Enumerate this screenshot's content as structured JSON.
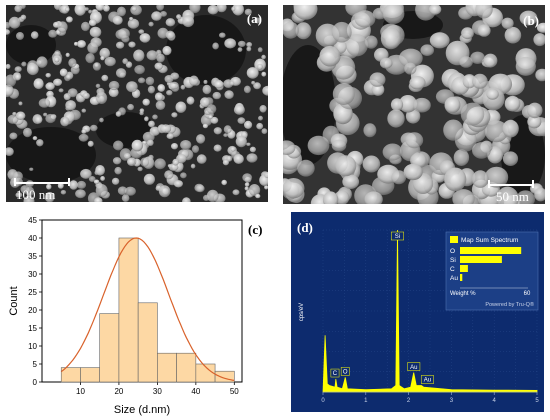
{
  "panels": {
    "a": {
      "label": "(a)",
      "scale_bar": "100 nm"
    },
    "b": {
      "label": "(b)",
      "scale_bar": "50 nm"
    },
    "c": {
      "label": "(c)"
    },
    "d": {
      "label": "(d)"
    }
  },
  "chart_data": [
    {
      "type": "bar",
      "panel": "c",
      "xlabel": "Size (d.nm)",
      "ylabel": "Count",
      "x_ticks": [
        10,
        20,
        30,
        40,
        50
      ],
      "y_ticks": [
        0,
        5,
        10,
        15,
        20,
        25,
        30,
        35,
        40,
        45
      ],
      "xlim": [
        0,
        52
      ],
      "ylim": [
        0,
        45
      ],
      "bins": [
        {
          "start": 5,
          "end": 10,
          "count": 4
        },
        {
          "start": 10,
          "end": 15,
          "count": 4
        },
        {
          "start": 15,
          "end": 20,
          "count": 19
        },
        {
          "start": 20,
          "end": 25,
          "count": 40
        },
        {
          "start": 25,
          "end": 30,
          "count": 22
        },
        {
          "start": 30,
          "end": 35,
          "count": 8
        },
        {
          "start": 35,
          "end": 40,
          "count": 8
        },
        {
          "start": 40,
          "end": 45,
          "count": 5
        },
        {
          "start": 45,
          "end": 50,
          "count": 3
        }
      ],
      "fit": {
        "type": "normal",
        "mean": 24.5,
        "sd": 8.5,
        "peak": 40
      },
      "colors": {
        "bar": "#fdd8a4",
        "bar_edge": "#666666",
        "fit": "#d9622b"
      }
    },
    {
      "type": "line",
      "panel": "d",
      "ylabel": "cps/eV",
      "x_ticks": [
        0,
        1,
        2,
        3,
        4,
        5
      ],
      "xlim": [
        0,
        5
      ],
      "ylim": [
        0,
        100
      ],
      "spectrum": [
        [
          0,
          0
        ],
        [
          0.05,
          35
        ],
        [
          0.1,
          5
        ],
        [
          0.15,
          4
        ],
        [
          0.28,
          3
        ],
        [
          0.3,
          8
        ],
        [
          0.33,
          3
        ],
        [
          0.45,
          2
        ],
        [
          0.52,
          9
        ],
        [
          0.57,
          2
        ],
        [
          1.0,
          1.5
        ],
        [
          1.6,
          2
        ],
        [
          1.7,
          4
        ],
        [
          1.74,
          100
        ],
        [
          1.78,
          4
        ],
        [
          1.9,
          2
        ],
        [
          2.05,
          3
        ],
        [
          2.12,
          12
        ],
        [
          2.18,
          4
        ],
        [
          2.3,
          4
        ],
        [
          2.35,
          3
        ],
        [
          3.0,
          1.5
        ],
        [
          4.0,
          1.2
        ],
        [
          5.0,
          1.0
        ]
      ],
      "peak_labels": [
        {
          "text": "C",
          "x": 0.28
        },
        {
          "text": "O",
          "x": 0.52
        },
        {
          "text": "Si",
          "x": 1.74
        },
        {
          "text": "Au",
          "x": 2.12
        },
        {
          "text": "Au",
          "x": 2.3
        }
      ],
      "legend": {
        "title": "Map Sum Spectrum",
        "axis_label": "Weight %",
        "axis_max": "60",
        "footer": "Powered by Tru-Q®",
        "max": 60,
        "items": [
          {
            "label": "O",
            "value": 54
          },
          {
            "label": "Si",
            "value": 37
          },
          {
            "label": "C",
            "value": 7
          },
          {
            "label": "Au",
            "value": 2
          }
        ]
      },
      "colors": {
        "background": "#0d2b6e",
        "trace": "#ffff00"
      }
    }
  ]
}
